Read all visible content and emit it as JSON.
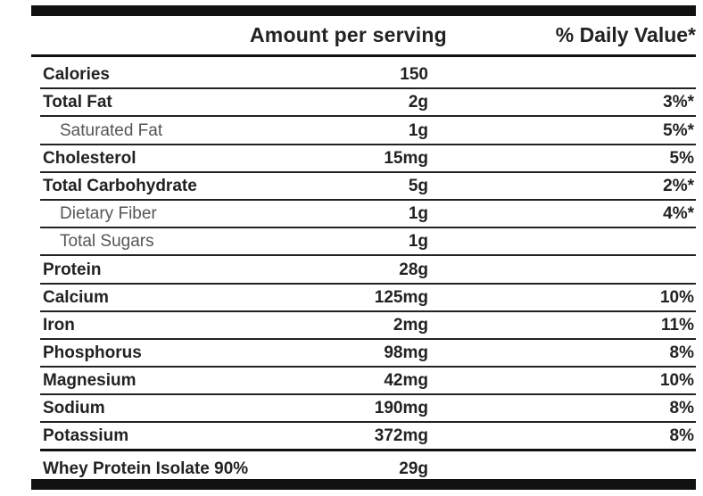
{
  "header": {
    "amount_label": "Amount per serving",
    "dv_label": "% Daily Value*"
  },
  "rows": [
    {
      "name": "Calories",
      "amount": "150",
      "dv": "",
      "sub": false
    },
    {
      "name": "Total Fat",
      "amount": "2g",
      "dv": "3%*",
      "sub": false
    },
    {
      "name": "Saturated Fat",
      "amount": "1g",
      "dv": "5%*",
      "sub": true
    },
    {
      "name": "Cholesterol",
      "amount": "15mg",
      "dv": "5%",
      "sub": false
    },
    {
      "name": "Total Carbohydrate",
      "amount": "5g",
      "dv": "2%*",
      "sub": false
    },
    {
      "name": "Dietary Fiber",
      "amount": "1g",
      "dv": "4%*",
      "sub": true
    },
    {
      "name": "Total Sugars",
      "amount": "1g",
      "dv": "",
      "sub": true
    },
    {
      "name": "Protein",
      "amount": "28g",
      "dv": "",
      "sub": false
    },
    {
      "name": "Calcium",
      "amount": "125mg",
      "dv": "10%",
      "sub": false
    },
    {
      "name": "Iron",
      "amount": "2mg",
      "dv": "11%",
      "sub": false
    },
    {
      "name": "Phosphorus",
      "amount": "98mg",
      "dv": "8%",
      "sub": false
    },
    {
      "name": "Magnesium",
      "amount": "42mg",
      "dv": "10%",
      "sub": false
    },
    {
      "name": "Sodium",
      "amount": "190mg",
      "dv": "8%",
      "sub": false
    },
    {
      "name": "Potassium",
      "amount": "372mg",
      "dv": "8%",
      "sub": false
    },
    {
      "name": "Whey Protein Isolate 90%",
      "amount": "29g",
      "dv": "",
      "sub": false
    }
  ]
}
